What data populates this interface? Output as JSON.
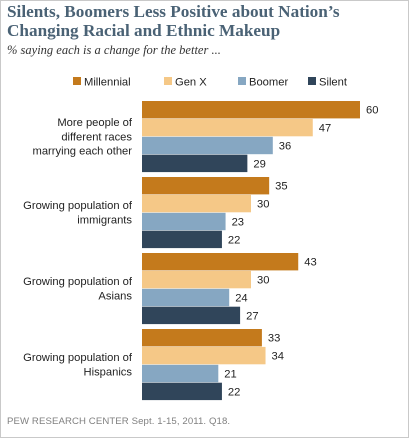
{
  "title": "Silents, Boomers Less Positive about Nation’s Changing Racial and Ethnic Makeup",
  "subtitle": "% saying each is a change for the better ...",
  "source": "PEW RESEARCH CENTER Sept. 1-15, 2011. Q18.",
  "colors": {
    "millennial": "#c47a1c",
    "genx": "#f5c887",
    "boomer": "#86a7c2",
    "silent": "#30455a",
    "frame": "#c9c9c9",
    "title": "#4a6275"
  },
  "chart_data": {
    "type": "bar",
    "orientation": "horizontal",
    "categories": [
      [
        "More people of",
        "different races",
        "marrying each other"
      ],
      [
        "Growing population of",
        "immigrants"
      ],
      [
        "Growing population of",
        "Asians"
      ],
      [
        "Growing population of",
        "Hispanics"
      ]
    ],
    "series": [
      {
        "name": "Millennial",
        "values": [
          60,
          35,
          43,
          33
        ]
      },
      {
        "name": "Gen X",
        "values": [
          47,
          30,
          30,
          34
        ]
      },
      {
        "name": "Boomer",
        "values": [
          36,
          23,
          24,
          21
        ]
      },
      {
        "name": "Silent",
        "values": [
          29,
          22,
          27,
          22
        ]
      }
    ],
    "xlim": [
      0,
      60
    ],
    "legend_position": "top",
    "grid": false
  }
}
